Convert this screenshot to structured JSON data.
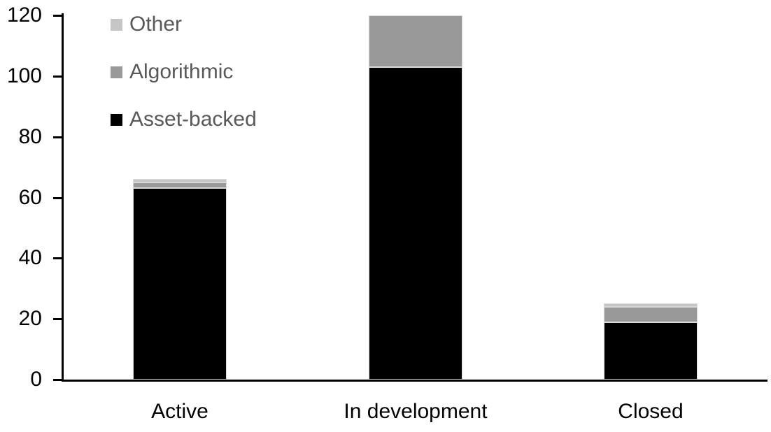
{
  "chart": {
    "title": "",
    "legend_items": [
      {
        "label": "Other",
        "color": "#c6c6c6",
        "icon": "square-swatch-icon"
      },
      {
        "label": "Algorithmic",
        "color": "#999999",
        "icon": "square-swatch-icon"
      },
      {
        "label": "Asset-backed",
        "color": "#000000",
        "icon": "square-swatch-icon"
      }
    ],
    "axis_text_color": "#000000",
    "legend_text_color": "#595959",
    "axis_line_color": "#000000"
  },
  "chart_data": {
    "type": "bar",
    "stacked": true,
    "categories": [
      "Active",
      "In development",
      "Closed"
    ],
    "series": [
      {
        "name": "Asset-backed",
        "color": "#000000",
        "values": [
          63,
          103,
          19
        ]
      },
      {
        "name": "Algorithmic",
        "color": "#999999",
        "values": [
          2,
          17,
          5
        ]
      },
      {
        "name": "Other",
        "color": "#c6c6c6",
        "values": [
          1,
          0,
          1
        ]
      }
    ],
    "totals": [
      66,
      120,
      25
    ],
    "title": "",
    "xlabel": "",
    "ylabel": "",
    "ylim": [
      0,
      120
    ],
    "yticks": [
      0,
      20,
      40,
      60,
      80,
      100,
      120
    ],
    "grid": false,
    "legend_position": "top-left",
    "legend_order_top_to_bottom": [
      "Other",
      "Algorithmic",
      "Asset-backed"
    ]
  }
}
